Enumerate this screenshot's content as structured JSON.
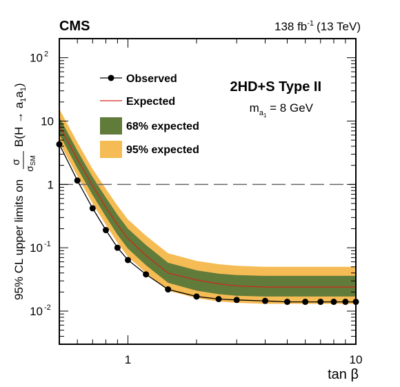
{
  "header": {
    "experiment": "CMS",
    "luminosity": "138 fb",
    "lumi_sup": "-1",
    "energy": "(13 TeV)"
  },
  "annotation": {
    "model": "2HD+S Type II",
    "mass_prefix": "m",
    "mass_sub": "a",
    "mass_subsub": "1",
    "mass_value": " = 8 GeV"
  },
  "legend": {
    "observed": "Observed",
    "expected": "Expected",
    "band68": "68% expected",
    "band95": "95% expected"
  },
  "axis_labels": {
    "x": "tan β",
    "y_prefix": "95% CL upper limits on",
    "y_frac_num": "σ",
    "y_frac_den": "σ",
    "y_frac_den_sub": "SM",
    "y_suffix": "B(H → a",
    "y_sub1": "1",
    "y_mid": "a",
    "y_sub2": "1",
    "y_close": ")"
  },
  "colors": {
    "band95": "#f5bb54",
    "band68": "#607b3a",
    "expected": "#d0281c",
    "observed": "#000000",
    "reference": "#666666"
  },
  "chart_data": {
    "type": "line",
    "xscale": "log",
    "yscale": "log",
    "xlim": [
      0.5,
      10
    ],
    "ylim": [
      0.003,
      200
    ],
    "x_ticks": [
      {
        "value": 1,
        "label": "1"
      },
      {
        "value": 10,
        "label": "10"
      }
    ],
    "y_ticks": [
      {
        "value": 0.01,
        "base": "10",
        "exp": "-2"
      },
      {
        "value": 0.1,
        "base": "10",
        "exp": "-1"
      },
      {
        "value": 1,
        "base": "1",
        "exp": ""
      },
      {
        "value": 10,
        "base": "10",
        "exp": ""
      },
      {
        "value": 100,
        "base": "10",
        "exp": "2"
      }
    ],
    "reference_line": 1,
    "observed": {
      "x": [
        0.5,
        0.6,
        0.7,
        0.8,
        0.9,
        1.0,
        1.2,
        1.5,
        2.0,
        2.5,
        3.0,
        4.0,
        5.0,
        6.0,
        7.0,
        8.0,
        9.0,
        10.0
      ],
      "y": [
        4.3,
        1.15,
        0.42,
        0.19,
        0.1,
        0.064,
        0.038,
        0.022,
        0.017,
        0.0155,
        0.015,
        0.0145,
        0.014,
        0.014,
        0.014,
        0.014,
        0.014,
        0.014
      ]
    },
    "expected": {
      "x": [
        0.5,
        0.6,
        0.7,
        0.8,
        0.9,
        1.0,
        1.2,
        1.5,
        2.0,
        2.5,
        3.0,
        4.0,
        6.0,
        8.0,
        10.0
      ],
      "y": [
        8.5,
        2.5,
        0.95,
        0.44,
        0.23,
        0.14,
        0.075,
        0.04,
        0.031,
        0.027,
        0.025,
        0.024,
        0.024,
        0.024,
        0.024
      ]
    },
    "band68": {
      "x": [
        0.5,
        0.6,
        0.7,
        0.8,
        0.9,
        1.0,
        1.2,
        1.5,
        2.0,
        2.5,
        3.0,
        4.0,
        6.0,
        8.0,
        10.0
      ],
      "lower": [
        6.2,
        1.8,
        0.68,
        0.31,
        0.16,
        0.097,
        0.053,
        0.028,
        0.021,
        0.0185,
        0.0175,
        0.017,
        0.017,
        0.017,
        0.017
      ],
      "upper": [
        11.5,
        3.4,
        1.3,
        0.62,
        0.33,
        0.2,
        0.11,
        0.058,
        0.044,
        0.039,
        0.037,
        0.036,
        0.036,
        0.036,
        0.036
      ]
    },
    "band95": {
      "x": [
        0.5,
        0.6,
        0.7,
        0.8,
        0.9,
        1.0,
        1.2,
        1.5,
        2.0,
        2.5,
        3.0,
        4.0,
        6.0,
        8.0,
        10.0
      ],
      "lower": [
        4.6,
        1.35,
        0.5,
        0.23,
        0.12,
        0.072,
        0.04,
        0.021,
        0.016,
        0.0142,
        0.0135,
        0.013,
        0.013,
        0.013,
        0.013
      ],
      "upper": [
        15.5,
        4.6,
        1.75,
        0.85,
        0.46,
        0.28,
        0.155,
        0.082,
        0.062,
        0.055,
        0.052,
        0.05,
        0.05,
        0.05,
        0.05
      ]
    }
  }
}
